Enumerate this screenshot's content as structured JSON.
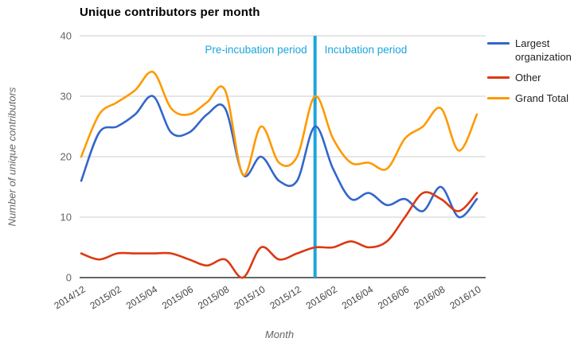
{
  "title": "Unique contributors per month",
  "axes": {
    "y_title": "Number of unique contributors",
    "x_title": "Month",
    "y_ticks": [
      0,
      10,
      20,
      30,
      40
    ],
    "x_tick_every": 2
  },
  "annotations": {
    "pre_label": "Pre-incubation period",
    "post_label": "Incubation period",
    "divider_month": "2016/01",
    "color": "#1ca5dc"
  },
  "legend": [
    {
      "name": "Largest organization",
      "color": "#3366cc"
    },
    {
      "name": "Other",
      "color": "#dc3912"
    },
    {
      "name": "Grand Total",
      "color": "#ff9900"
    }
  ],
  "chart_data": {
    "type": "line",
    "curve": "smooth",
    "title": "Unique contributors per month",
    "xlabel": "Month",
    "ylabel": "Number of unique contributors",
    "ylim": [
      0,
      40
    ],
    "grid": true,
    "legend_position": "right",
    "x": [
      "2014/12",
      "2015/01",
      "2015/02",
      "2015/03",
      "2015/04",
      "2015/05",
      "2015/06",
      "2015/07",
      "2015/08",
      "2015/09",
      "2015/10",
      "2015/11",
      "2015/12",
      "2016/01",
      "2016/02",
      "2016/03",
      "2016/04",
      "2016/05",
      "2016/06",
      "2016/07",
      "2016/08",
      "2016/09",
      "2016/10"
    ],
    "series": [
      {
        "name": "Largest organization",
        "color": "#3366cc",
        "values": [
          16,
          24,
          25,
          27,
          30,
          24,
          24,
          27,
          28,
          17,
          20,
          16,
          16,
          25,
          18,
          13,
          14,
          12,
          13,
          11,
          15,
          10,
          13
        ]
      },
      {
        "name": "Other",
        "color": "#dc3912",
        "values": [
          4,
          3,
          4,
          4,
          4,
          4,
          3,
          2,
          3,
          0,
          5,
          3,
          4,
          5,
          5,
          6,
          5,
          6,
          10,
          14,
          13,
          11,
          14
        ]
      },
      {
        "name": "Grand Total",
        "color": "#ff9900",
        "values": [
          20,
          27,
          29,
          31,
          34,
          28,
          27,
          29,
          31,
          17,
          25,
          19,
          20,
          30,
          23,
          19,
          19,
          18,
          23,
          25,
          28,
          21,
          27
        ]
      }
    ]
  }
}
